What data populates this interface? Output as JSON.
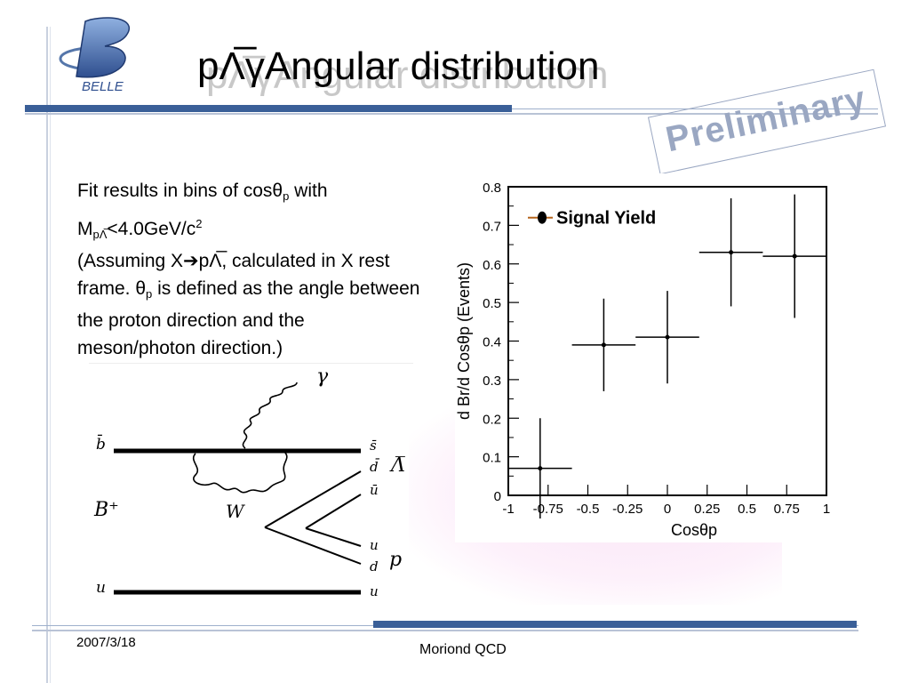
{
  "slide": {
    "title": "pΛ̅γAngular distribution",
    "stamp": "Preliminary",
    "logo_text": "BELLE",
    "date": "2007/3/18",
    "footer": "Moriond QCD"
  },
  "description": {
    "line1_pre": "Fit results in bins of cosθ",
    "line1_sub": "p",
    "line1_post": " with",
    "line2_m": "M",
    "line2_sub": "pΛ̅",
    "line2_val": "<4.0GeV/c",
    "line2_sup": "2",
    "line3": "(Assuming X➔pΛ̅, calculated in X rest frame.  θ",
    "line3_sub": "p",
    "line3_post": " is defined as the angle between the proton direction and the meson/photon direction.)"
  },
  "diagram": {
    "labels": {
      "bbar": "b̄",
      "u_left": "u",
      "meson": "B⁺",
      "boson": "W",
      "photon": "γ",
      "sbar": "s̄",
      "dbar1": "d̄",
      "lambda": "Λ̅",
      "ubar": "ū",
      "u_mid": "u",
      "d": "d",
      "proton": "p",
      "u_right": "u"
    }
  },
  "chart_data": {
    "type": "scatter",
    "xlabel": "Cosθp",
    "ylabel": "d Br/d Cosθp  (Events)",
    "xlim": [
      -1,
      1
    ],
    "ylim": [
      0,
      0.8
    ],
    "xticks": [
      "-1",
      "-0.75",
      "-0.5",
      "-0.25",
      "0",
      "0.25",
      "0.5",
      "0.75",
      "1"
    ],
    "yticks": [
      "0",
      "0.1",
      "0.2",
      "0.3",
      "0.4",
      "0.5",
      "0.6",
      "0.7",
      "0.8"
    ],
    "legend": "Signal Yield",
    "legend_position": "top-left",
    "series": [
      {
        "name": "Signal Yield",
        "x": [
          -0.8,
          -0.4,
          0.0,
          0.4,
          0.8
        ],
        "y": [
          0.07,
          0.39,
          0.41,
          0.63,
          0.62
        ],
        "x_err": [
          0.2,
          0.2,
          0.2,
          0.2,
          0.2
        ],
        "y_err": [
          0.13,
          0.12,
          0.12,
          0.14,
          0.16
        ]
      }
    ]
  },
  "colors": {
    "accent": "#3a5f98",
    "stamp": "#9aa7c2"
  }
}
